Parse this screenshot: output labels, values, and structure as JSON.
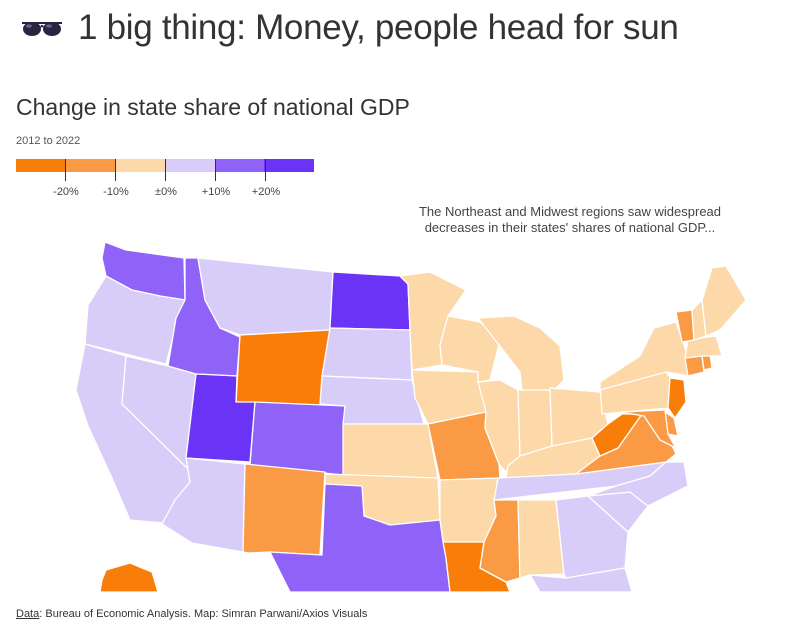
{
  "headline": {
    "icon": "sunglasses-icon",
    "text": "1 big thing: Money, people head for sun"
  },
  "map": {
    "title": "Change in state share of national GDP",
    "subtitle": "2012 to 2022",
    "annotation": "The Northeast and Midwest regions saw widespread decreases in their states' shares of national GDP...",
    "legend": {
      "colors": [
        "#f97d09",
        "#fa9a45",
        "#fdd8a8",
        "#d8ccf8",
        "#8f63f7",
        "#6a33f5"
      ],
      "labels": [
        "-20%",
        "-10%",
        "±0%",
        "+10%",
        "+20%"
      ]
    },
    "states": [
      {
        "abbr": "WA",
        "class": 4
      },
      {
        "abbr": "OR",
        "class": 3
      },
      {
        "abbr": "CA",
        "class": 3
      },
      {
        "abbr": "NV",
        "class": 3
      },
      {
        "abbr": "ID",
        "class": 4
      },
      {
        "abbr": "MT",
        "class": 3
      },
      {
        "abbr": "WY",
        "class": 0
      },
      {
        "abbr": "UT",
        "class": 5
      },
      {
        "abbr": "AZ",
        "class": 3
      },
      {
        "abbr": "CO",
        "class": 4
      },
      {
        "abbr": "NM",
        "class": 1
      },
      {
        "abbr": "ND",
        "class": 5
      },
      {
        "abbr": "SD",
        "class": 3
      },
      {
        "abbr": "NE",
        "class": 3
      },
      {
        "abbr": "KS",
        "class": 2
      },
      {
        "abbr": "OK",
        "class": 2
      },
      {
        "abbr": "TX",
        "class": 4
      },
      {
        "abbr": "MN",
        "class": 2
      },
      {
        "abbr": "IA",
        "class": 2
      },
      {
        "abbr": "MO",
        "class": 1
      },
      {
        "abbr": "AR",
        "class": 2
      },
      {
        "abbr": "LA",
        "class": 0
      },
      {
        "abbr": "WI",
        "class": 2
      },
      {
        "abbr": "IL",
        "class": 2
      },
      {
        "abbr": "MI",
        "class": 2
      },
      {
        "abbr": "IN",
        "class": 2
      },
      {
        "abbr": "OH",
        "class": 2
      },
      {
        "abbr": "KY",
        "class": 2
      },
      {
        "abbr": "TN",
        "class": 3
      },
      {
        "abbr": "MS",
        "class": 1
      },
      {
        "abbr": "AL",
        "class": 2
      },
      {
        "abbr": "GA",
        "class": 3
      },
      {
        "abbr": "FL",
        "class": 3
      },
      {
        "abbr": "SC",
        "class": 3
      },
      {
        "abbr": "NC",
        "class": 3
      },
      {
        "abbr": "VA",
        "class": 1
      },
      {
        "abbr": "WV",
        "class": 0
      },
      {
        "abbr": "PA",
        "class": 2
      },
      {
        "abbr": "NY",
        "class": 2
      },
      {
        "abbr": "NJ",
        "class": 0
      },
      {
        "abbr": "DE",
        "class": 1
      },
      {
        "abbr": "MD",
        "class": 1
      },
      {
        "abbr": "CT",
        "class": 1
      },
      {
        "abbr": "RI",
        "class": 1
      },
      {
        "abbr": "MA",
        "class": 2
      },
      {
        "abbr": "VT",
        "class": 1
      },
      {
        "abbr": "NH",
        "class": 2
      },
      {
        "abbr": "ME",
        "class": 2
      },
      {
        "abbr": "AK",
        "class": 0
      }
    ]
  },
  "footer": {
    "data_label": "Data",
    "source_text": ": Bureau of Economic Analysis. Map: Simran Parwani/Axios Visuals"
  }
}
